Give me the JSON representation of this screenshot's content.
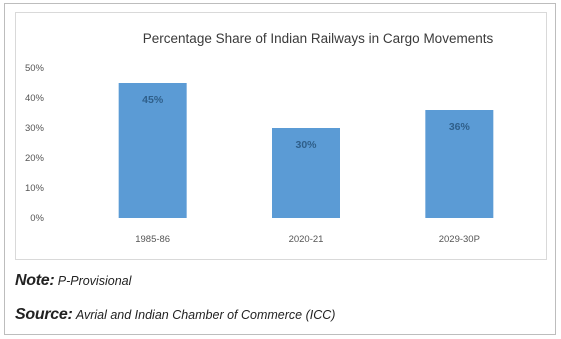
{
  "chart_data": {
    "type": "bar",
    "title": "Percentage Share of Indian Railways in Cargo Movements",
    "categories": [
      "1985-86",
      "2020-21",
      "2029-30P"
    ],
    "values": [
      45,
      30,
      36
    ],
    "data_labels": [
      "45%",
      "30%",
      "36%"
    ],
    "y_ticks": [
      "0%",
      "10%",
      "20%",
      "30%",
      "40%",
      "50%"
    ],
    "ylim": [
      0,
      50
    ],
    "xlabel": "",
    "ylabel": "",
    "grid": false,
    "bar_color": "#5b9bd5"
  },
  "note": {
    "key": "Note:",
    "text": "P-Provisional"
  },
  "source": {
    "key": "Source:",
    "text": "Avrial and Indian Chamber of Commerce (ICC)"
  }
}
